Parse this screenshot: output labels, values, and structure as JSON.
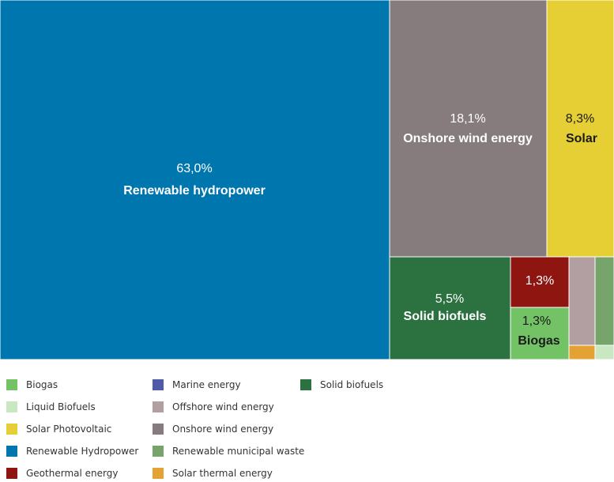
{
  "chart_data": {
    "type": "treemap",
    "unit": "%",
    "tiles": [
      {
        "name": "Renewable hydropower",
        "pct_label": "63,0%",
        "value": 63.0,
        "color": "#0076AE"
      },
      {
        "name": "Onshore wind energy",
        "pct_label": "18,1%",
        "value": 18.1,
        "color": "#867C7D"
      },
      {
        "name": "Solar",
        "pct_label": "8,3%",
        "value": 8.3,
        "color": "#E6CF35"
      },
      {
        "name": "Solid biofuels",
        "pct_label": "5,5%",
        "value": 5.5,
        "color": "#2C7241"
      },
      {
        "name": "",
        "pct_label": "1,3%",
        "value": 1.3,
        "color": "#8E1510"
      },
      {
        "name": "Biogas",
        "pct_label": "1,3%",
        "value": 1.3,
        "color": "#74C266"
      },
      {
        "name": "",
        "pct_label": "",
        "value": 0.8,
        "color": "#B19FA2"
      },
      {
        "name": "",
        "pct_label": "",
        "value": 0.4,
        "color": "#E3A233"
      },
      {
        "name": "",
        "pct_label": "",
        "value": 0.6,
        "color": "#77A46B"
      },
      {
        "name": "",
        "pct_label": "",
        "value": 0.2,
        "color": "#C9E7C0"
      }
    ],
    "legend": [
      {
        "label": "Biogas",
        "color": "#74C266"
      },
      {
        "label": "Liquid Biofuels",
        "color": "#C9E7C0"
      },
      {
        "label": "Solar Photovoltaic",
        "color": "#E6CF35"
      },
      {
        "label": "Renewable Hydropower",
        "color": "#0076AE"
      },
      {
        "label": "Geothermal energy",
        "color": "#8E1510"
      },
      {
        "label": "Marine energy",
        "color": "#4F5AA8"
      },
      {
        "label": "Offshore wind energy",
        "color": "#B19FA2"
      },
      {
        "label": "Onshore wind energy",
        "color": "#867C7D"
      },
      {
        "label": "Renewable municipal waste",
        "color": "#77A46B"
      },
      {
        "label": "Solar thermal energy",
        "color": "#E3A233"
      },
      {
        "label": "Solid biofuels",
        "color": "#2C7241"
      }
    ]
  }
}
